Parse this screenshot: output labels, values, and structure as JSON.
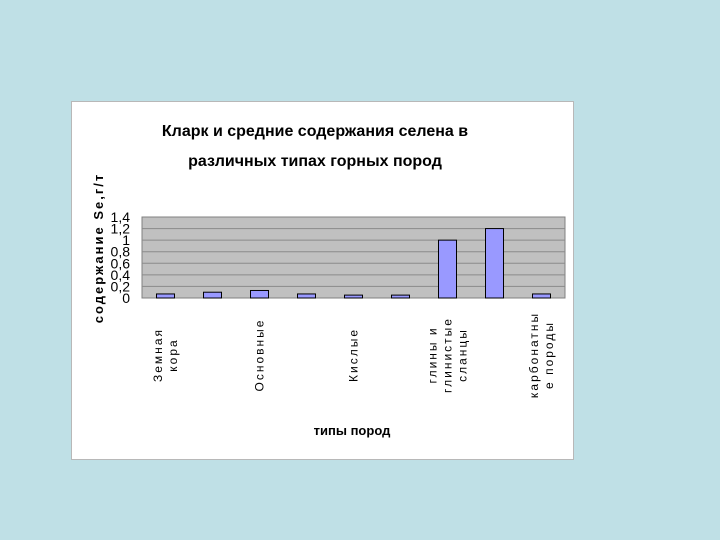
{
  "chart_data": {
    "type": "bar",
    "title": [
      "Кларк и средние содержания селена в",
      "различных типах горных пород"
    ],
    "xlabel": "типы пород",
    "ylabel": "содержание Se,г/т",
    "ylim": [
      0,
      1.4
    ],
    "yticks": [
      "0",
      "0,2",
      "0,4",
      "0,6",
      "0,8",
      "1",
      "1,2",
      "1,4"
    ],
    "grid": true,
    "legend": "none",
    "bar_color": "#9999ff",
    "plot_background": "#c0c0c0",
    "categories": [
      [
        "Земная",
        "кора"
      ],
      [],
      [
        "Основные"
      ],
      [],
      [
        "Кислые"
      ],
      [],
      [
        "глины и",
        "глинистые",
        "сланцы"
      ],
      [],
      [
        "карбонатны",
        "е породы"
      ]
    ],
    "values": [
      0.07,
      0.1,
      0.13,
      0.07,
      0.05,
      0.05,
      1.0,
      1.2,
      0.07
    ]
  }
}
